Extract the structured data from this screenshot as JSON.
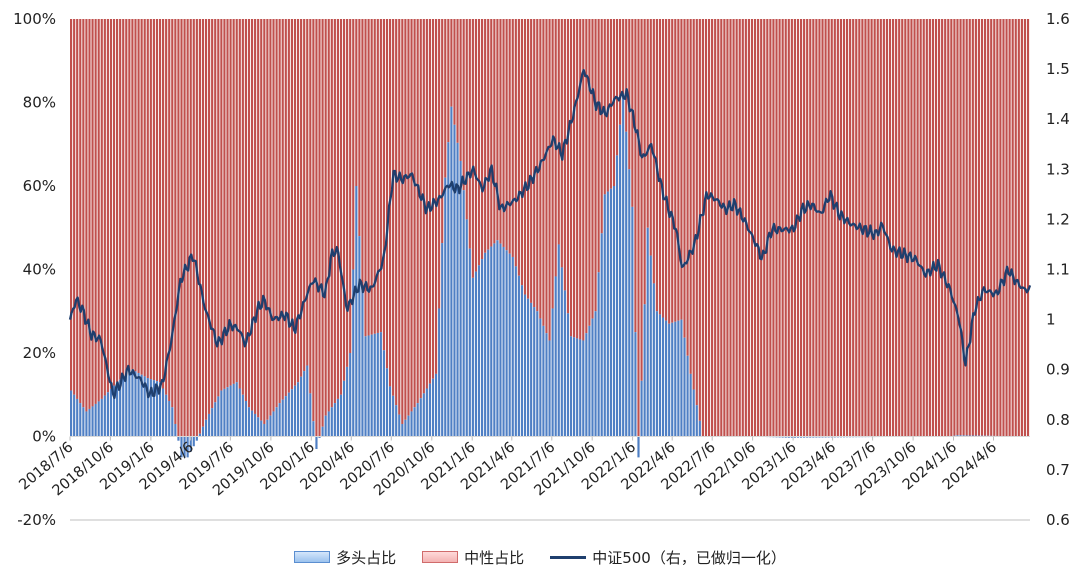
{
  "chart_data": {
    "type": "bar",
    "title": "",
    "stacked": true,
    "left_axis": {
      "min": -0.2,
      "max": 1.0,
      "ticks": [
        "-20%",
        "0%",
        "20%",
        "40%",
        "60%",
        "80%",
        "100%"
      ],
      "tick_values": [
        -0.2,
        0,
        0.2,
        0.4,
        0.6,
        0.8,
        1.0
      ]
    },
    "right_axis": {
      "min": 0.6,
      "max": 1.6,
      "ticks": [
        "0.6",
        "0.7",
        "0.8",
        "0.9",
        "1",
        "1.1",
        "1.2",
        "1.3",
        "1.4",
        "1.5",
        "1.6"
      ],
      "tick_values": [
        0.6,
        0.7,
        0.8,
        0.9,
        1.0,
        1.1,
        1.2,
        1.3,
        1.4,
        1.5,
        1.6
      ]
    },
    "x_tick_labels": [
      "2018/7/6",
      "2018/10/6",
      "2019/1/6",
      "2019/4/6",
      "2019/7/6",
      "2019/10/6",
      "2020/1/6",
      "2020/4/6",
      "2020/7/6",
      "2020/10/6",
      "2021/1/6",
      "2021/4/6",
      "2021/7/6",
      "2021/10/6",
      "2022/1/6",
      "2022/4/6",
      "2022/7/6",
      "2022/10/6",
      "2023/1/6",
      "2023/4/6",
      "2023/7/6",
      "2023/10/6",
      "2024/1/6",
      "2024/4/6"
    ],
    "period_start": "2018/7/6",
    "period_end": "2024/6/28",
    "frequency": "weekly",
    "long_ratio_keypoints": [
      [
        "2018/7/6",
        0.11
      ],
      [
        "2018/8/10",
        0.06
      ],
      [
        "2018/9/14",
        0.09
      ],
      [
        "2018/10/19",
        0.13
      ],
      [
        "2018/11/23",
        0.16
      ],
      [
        "2018/12/28",
        0.14
      ],
      [
        "2019/1/25",
        0.13
      ],
      [
        "2019/2/22",
        0.07
      ],
      [
        "2019/3/15",
        -0.05
      ],
      [
        "2019/3/29",
        -0.05
      ],
      [
        "2019/4/19",
        -0.01
      ],
      [
        "2019/5/10",
        0.04
      ],
      [
        "2019/6/14",
        0.11
      ],
      [
        "2019/7/19",
        0.13
      ],
      [
        "2019/8/16",
        0.07
      ],
      [
        "2019/9/20",
        0.03
      ],
      [
        "2019/10/25",
        0.08
      ],
      [
        "2019/12/6",
        0.13
      ],
      [
        "2019/12/27",
        0.17
      ],
      [
        "2020/1/17",
        -0.03
      ],
      [
        "2020/2/7",
        0.05
      ],
      [
        "2020/3/13",
        0.1
      ],
      [
        "2020/4/3",
        0.2
      ],
      [
        "2020/4/17",
        0.6
      ],
      [
        "2020/5/8",
        0.24
      ],
      [
        "2020/6/12",
        0.25
      ],
      [
        "2020/7/3",
        0.12
      ],
      [
        "2020/7/31",
        0.03
      ],
      [
        "2020/9/4",
        0.08
      ],
      [
        "2020/10/16",
        0.15
      ],
      [
        "2020/11/6",
        0.62
      ],
      [
        "2020/11/20",
        0.79
      ],
      [
        "2020/12/11",
        0.66
      ],
      [
        "2021/1/8",
        0.38
      ],
      [
        "2021/2/5",
        0.44
      ],
      [
        "2021/3/5",
        0.47
      ],
      [
        "2021/4/9",
        0.43
      ],
      [
        "2021/5/7",
        0.34
      ],
      [
        "2021/6/4",
        0.3
      ],
      [
        "2021/7/2",
        0.23
      ],
      [
        "2021/7/23",
        0.46
      ],
      [
        "2021/8/20",
        0.24
      ],
      [
        "2021/9/17",
        0.23
      ],
      [
        "2021/10/15",
        0.3
      ],
      [
        "2021/11/5",
        0.58
      ],
      [
        "2021/11/26",
        0.6
      ],
      [
        "2021/12/17",
        0.82
      ],
      [
        "2022/1/7",
        0.55
      ],
      [
        "2022/1/21",
        -0.05
      ],
      [
        "2022/2/11",
        0.5
      ],
      [
        "2022/3/4",
        0.3
      ],
      [
        "2022/4/1",
        0.27
      ],
      [
        "2022/4/29",
        0.28
      ],
      [
        "2022/5/20",
        0.15
      ],
      [
        "2022/6/17",
        0.0
      ],
      [
        "2022/9/30",
        0.0
      ],
      [
        "2022/12/30",
        -0.003
      ],
      [
        "2023/12/29",
        0.0
      ],
      [
        "2024/1/19",
        0.003
      ],
      [
        "2024/6/28",
        0.0
      ]
    ],
    "index_keypoints": [
      [
        "2018/7/6",
        1.0
      ],
      [
        "2018/7/20",
        1.04
      ],
      [
        "2018/8/3",
        1.02
      ],
      [
        "2018/8/24",
        0.97
      ],
      [
        "2018/9/14",
        0.96
      ],
      [
        "2018/10/12",
        0.85
      ],
      [
        "2018/10/26",
        0.87
      ],
      [
        "2018/11/16",
        0.9
      ],
      [
        "2018/12/14",
        0.88
      ],
      [
        "2019/1/4",
        0.85
      ],
      [
        "2019/2/1",
        0.87
      ],
      [
        "2019/2/22",
        0.96
      ],
      [
        "2019/3/15",
        1.08
      ],
      [
        "2019/4/12",
        1.13
      ],
      [
        "2019/5/10",
        1.02
      ],
      [
        "2019/6/7",
        0.95
      ],
      [
        "2019/7/5",
        0.99
      ],
      [
        "2019/7/26",
        0.98
      ],
      [
        "2019/8/9",
        0.95
      ],
      [
        "2019/9/6",
        1.02
      ],
      [
        "2019/9/20",
        1.04
      ],
      [
        "2019/10/11",
        1.0
      ],
      [
        "2019/11/8",
        1.01
      ],
      [
        "2019/11/29",
        0.98
      ],
      [
        "2019/12/27",
        1.05
      ],
      [
        "2020/1/10",
        1.08
      ],
      [
        "2020/2/7",
        1.05
      ],
      [
        "2020/2/21",
        1.13
      ],
      [
        "2020/3/6",
        1.14
      ],
      [
        "2020/3/27",
        1.02
      ],
      [
        "2020/4/24",
        1.07
      ],
      [
        "2020/5/22",
        1.06
      ],
      [
        "2020/6/19",
        1.12
      ],
      [
        "2020/7/10",
        1.29
      ],
      [
        "2020/7/31",
        1.28
      ],
      [
        "2020/8/21",
        1.29
      ],
      [
        "2020/9/25",
        1.22
      ],
      [
        "2020/10/23",
        1.24
      ],
      [
        "2020/11/13",
        1.27
      ],
      [
        "2020/12/4",
        1.26
      ],
      [
        "2021/1/8",
        1.3
      ],
      [
        "2021/1/29",
        1.26
      ],
      [
        "2021/2/19",
        1.3
      ],
      [
        "2021/3/12",
        1.22
      ],
      [
        "2021/4/16",
        1.24
      ],
      [
        "2021/5/14",
        1.27
      ],
      [
        "2021/6/11",
        1.31
      ],
      [
        "2021/7/9",
        1.36
      ],
      [
        "2021/7/30",
        1.33
      ],
      [
        "2021/8/27",
        1.42
      ],
      [
        "2021/9/17",
        1.5
      ],
      [
        "2021/10/15",
        1.43
      ],
      [
        "2021/11/5",
        1.41
      ],
      [
        "2021/11/26",
        1.44
      ],
      [
        "2021/12/24",
        1.45
      ],
      [
        "2022/1/14",
        1.38
      ],
      [
        "2022/1/28",
        1.32
      ],
      [
        "2022/2/18",
        1.35
      ],
      [
        "2022/3/11",
        1.27
      ],
      [
        "2022/3/25",
        1.23
      ],
      [
        "2022/4/15",
        1.18
      ],
      [
        "2022/4/29",
        1.1
      ],
      [
        "2022/5/27",
        1.15
      ],
      [
        "2022/6/24",
        1.25
      ],
      [
        "2022/7/15",
        1.24
      ],
      [
        "2022/8/5",
        1.22
      ],
      [
        "2022/8/26",
        1.23
      ],
      [
        "2022/9/16",
        1.2
      ],
      [
        "2022/10/14",
        1.15
      ],
      [
        "2022/10/28",
        1.12
      ],
      [
        "2022/11/18",
        1.18
      ],
      [
        "2022/12/16",
        1.18
      ],
      [
        "2023/1/6",
        1.18
      ],
      [
        "2023/1/27",
        1.22
      ],
      [
        "2023/2/17",
        1.23
      ],
      [
        "2023/3/10",
        1.21
      ],
      [
        "2023/3/31",
        1.25
      ],
      [
        "2023/4/21",
        1.21
      ],
      [
        "2023/5/19",
        1.19
      ],
      [
        "2023/6/16",
        1.18
      ],
      [
        "2023/7/14",
        1.17
      ],
      [
        "2023/7/28",
        1.19
      ],
      [
        "2023/8/18",
        1.14
      ],
      [
        "2023/9/15",
        1.13
      ],
      [
        "2023/10/13",
        1.12
      ],
      [
        "2023/11/3",
        1.09
      ],
      [
        "2023/12/1",
        1.11
      ],
      [
        "2023/12/29",
        1.06
      ],
      [
        "2024/1/19",
        1.0
      ],
      [
        "2024/2/2",
        0.91
      ],
      [
        "2024/2/23",
        1.02
      ],
      [
        "2024/3/15",
        1.06
      ],
      [
        "2024/4/12",
        1.05
      ],
      [
        "2024/5/10",
        1.1
      ],
      [
        "2024/5/24",
        1.08
      ],
      [
        "2024/6/14",
        1.06
      ],
      [
        "2024/6/28",
        1.06
      ]
    ],
    "colors": {
      "long": "#4f7fc4",
      "neutral": "#c0504d",
      "index": "#1f3f6e"
    },
    "legend": {
      "position": "bottom"
    },
    "series": [
      {
        "name": "多头占比",
        "type": "bar",
        "axis": "left"
      },
      {
        "name": "中性占比",
        "type": "bar",
        "axis": "left"
      },
      {
        "name": "中证500（右，已做归一化）",
        "type": "line",
        "axis": "right"
      }
    ]
  },
  "legend_labels": {
    "long": "多头占比",
    "neutral": "中性占比",
    "index": "中证500（右，已做归一化）"
  }
}
